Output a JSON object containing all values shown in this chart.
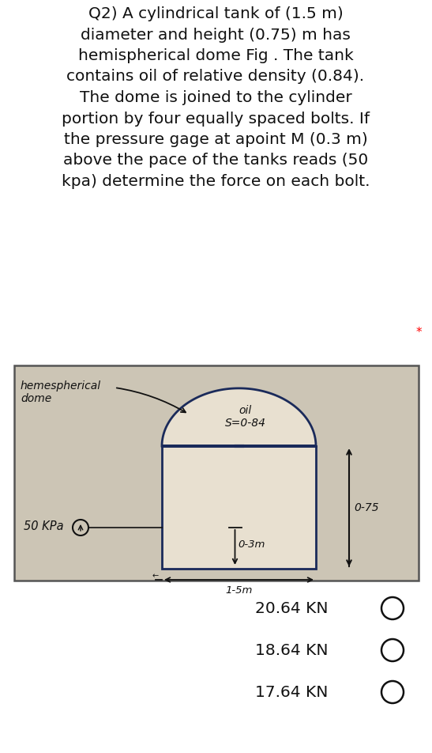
{
  "title_text": "Q2) A cylindrical tank of (1.5 m)\ndiameter and height (0.75) m has\nhemispherical dome Fig . The tank\ncontains oil of relative density (0.84).\nThe dome is joined to the cylinder\nportion by four equally spaced bolts. If\nthe pressure gage at apoint M (0.3 m)\nabove the pace of the tanks reads (50\nkpa) determine the force on each bolt.",
  "star_text": "*",
  "background_color": "#ffffff",
  "diagram_bg_color": "#ccc5b5",
  "diagram_border_color": "#555555",
  "tank_fill_color": "#e8e0d0",
  "tank_border_color": "#1a2a5a",
  "dome_label": "hemespherical\ndome",
  "oil_label": "oil\nS=0-84",
  "pressure_label": "50 KPa",
  "dim_03": "0-3m",
  "dim_15": "1-5m",
  "dim_075": "0-75",
  "answer1": "20.64 KN",
  "answer2": "18.64 KN",
  "answer3": "17.64 KN",
  "text_color": "#111111",
  "answer_color": "#111111",
  "circle_color": "#111111",
  "title_fontsize": 14.5,
  "answer_fontsize": 14.5,
  "diagram_text_fontsize": 10.5
}
